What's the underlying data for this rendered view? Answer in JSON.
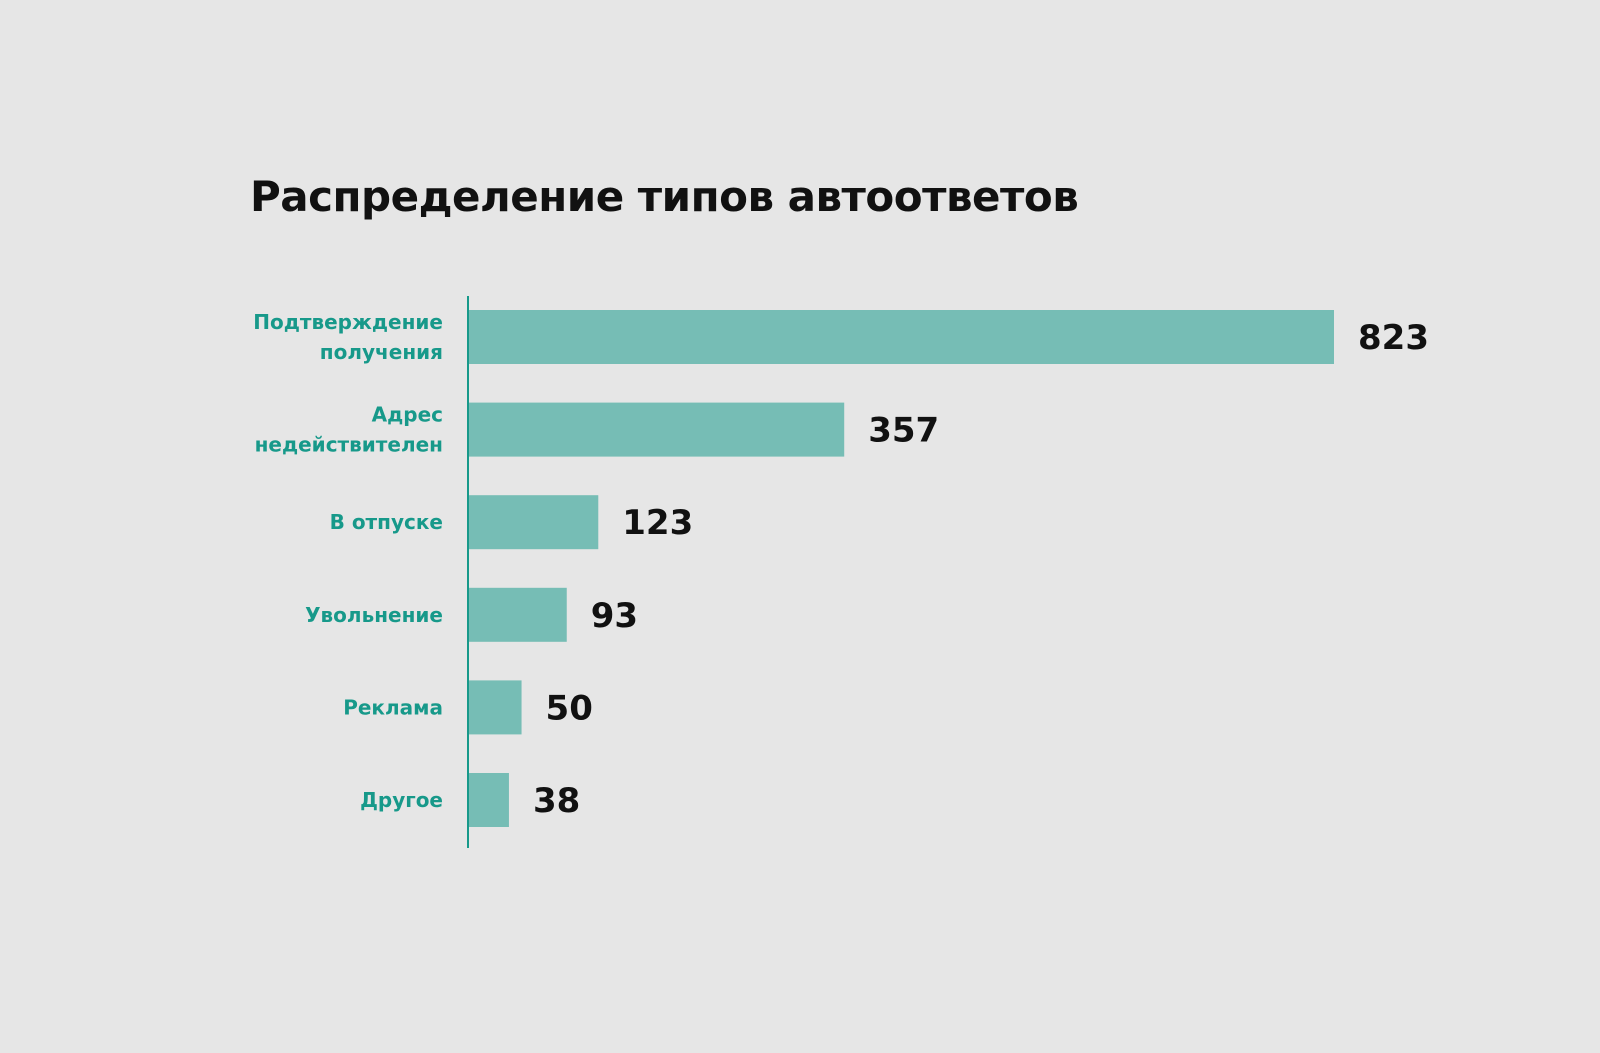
{
  "chart_data": {
    "type": "bar",
    "orientation": "horizontal",
    "title": "Распределение типов автоответов",
    "categories": [
      [
        "Подтверждение",
        "получения"
      ],
      [
        "Адрес",
        "недействителен"
      ],
      [
        "В отпуске"
      ],
      [
        "Увольнение"
      ],
      [
        "Реклама"
      ],
      [
        "Другое"
      ]
    ],
    "values": [
      823,
      357,
      123,
      93,
      50,
      38
    ],
    "xlabel": "",
    "ylabel": "",
    "xlim": [
      0,
      823
    ],
    "grid": false,
    "colors": {
      "bar": "#76bdb5",
      "label": "#17998a",
      "axis": "#17998a",
      "background": "#e6e6e6"
    }
  }
}
